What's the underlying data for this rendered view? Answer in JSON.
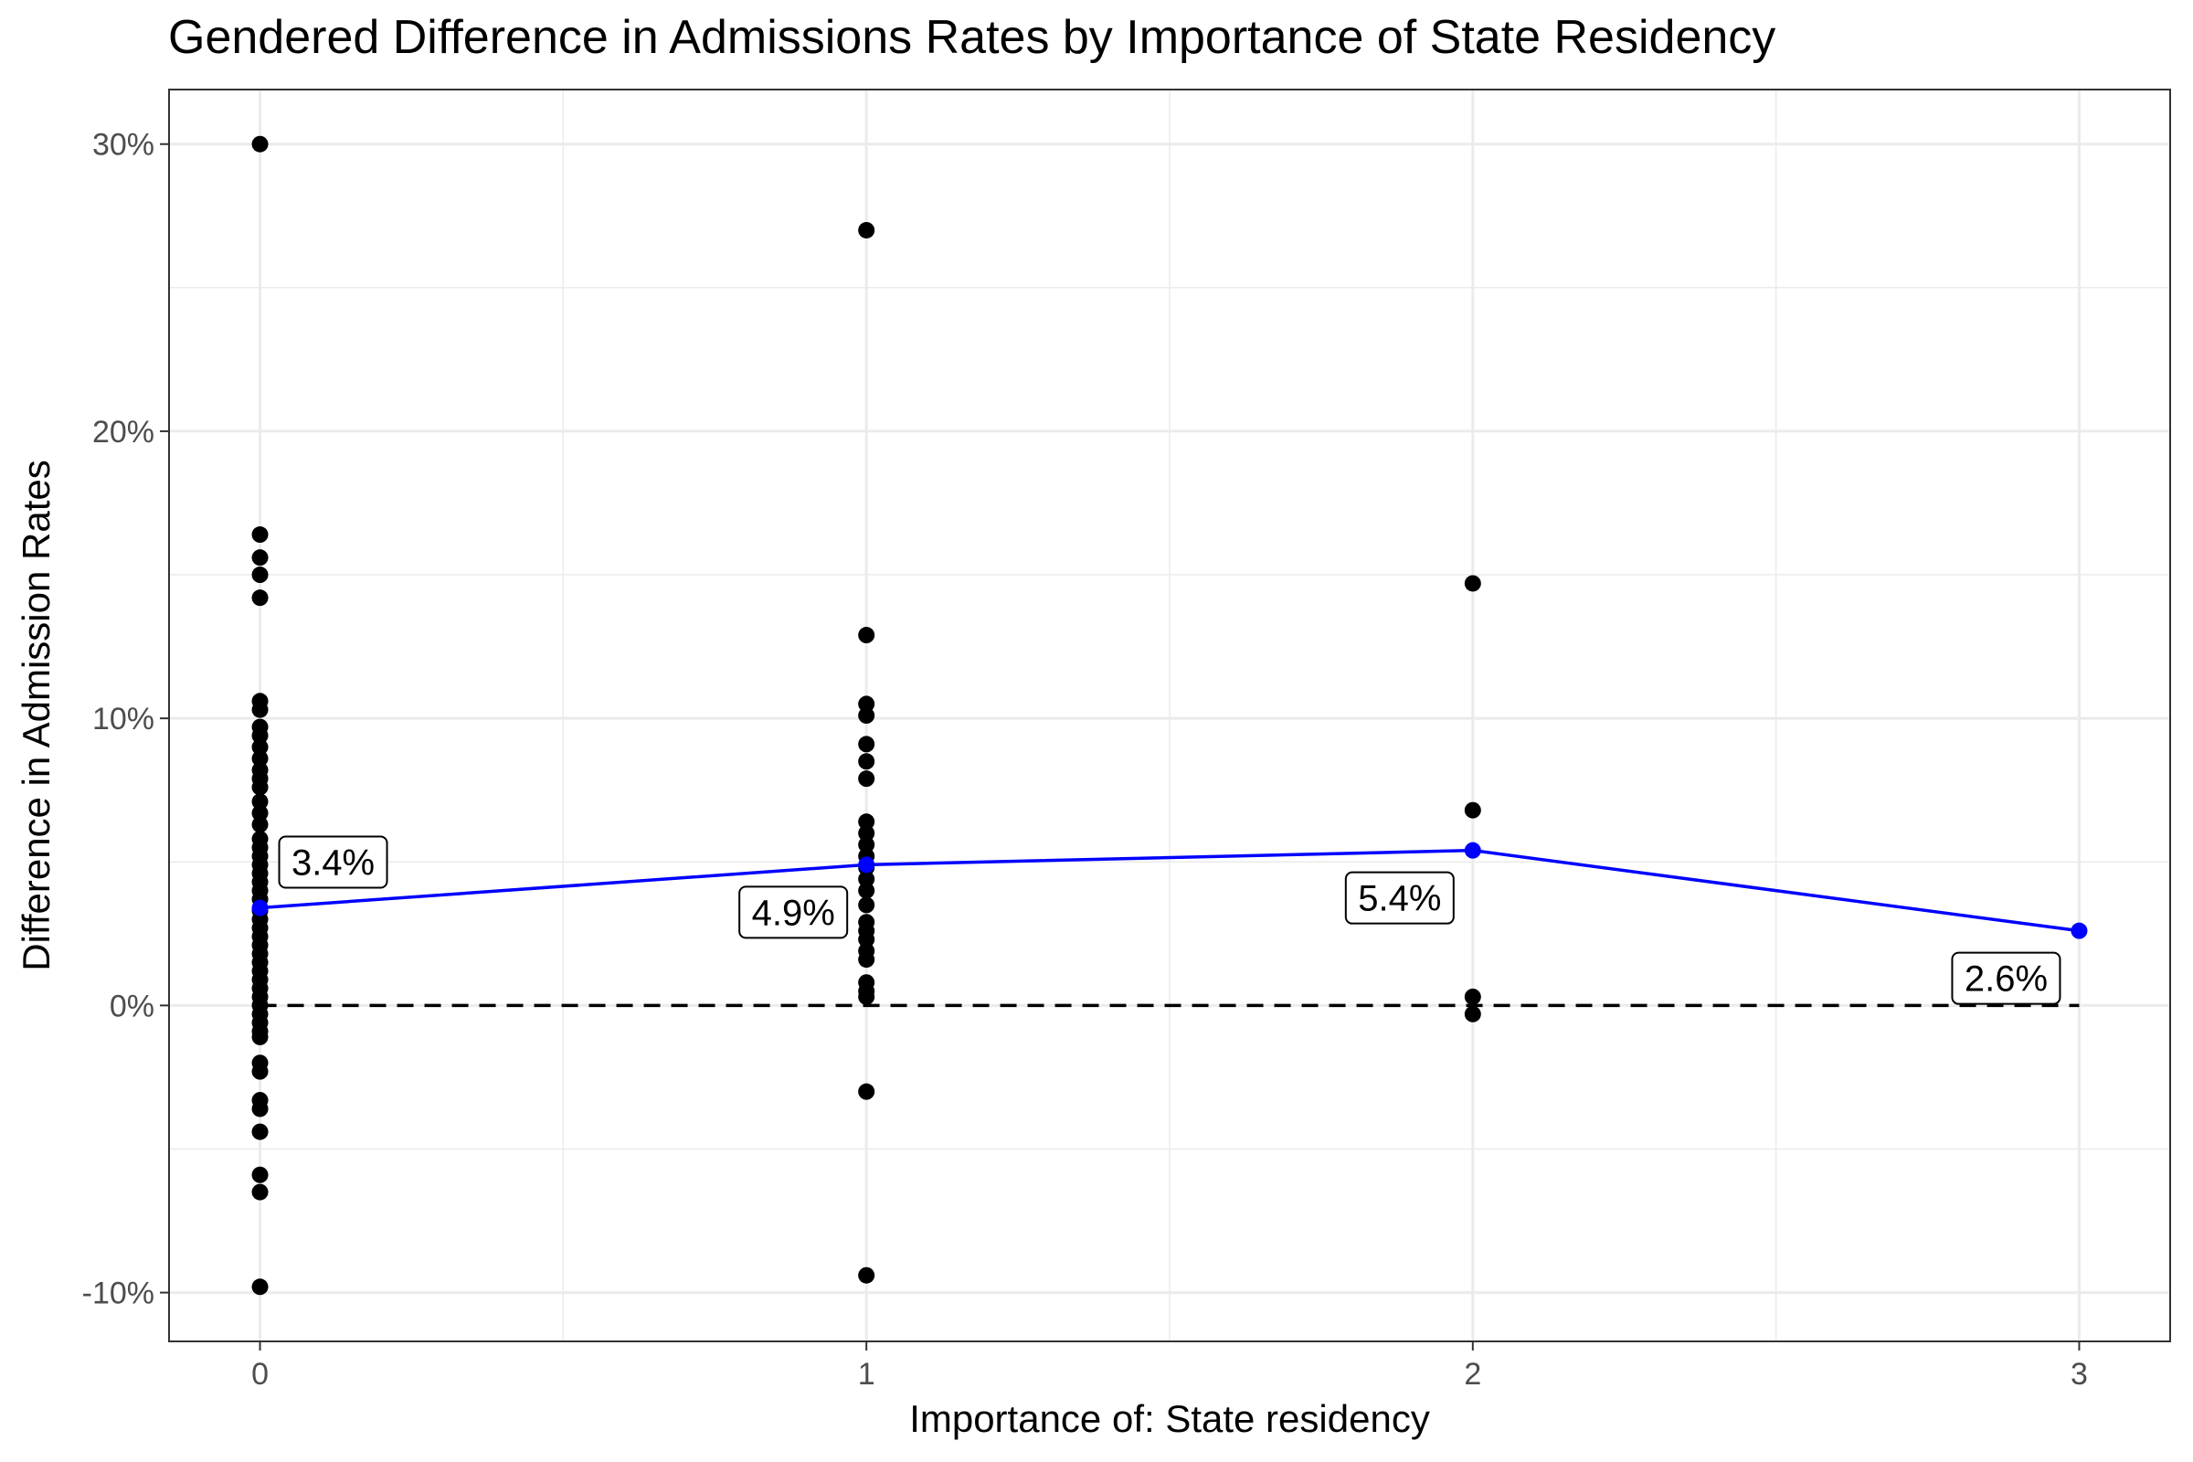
{
  "chart_data": {
    "type": "scatter",
    "title": "Gendered Difference in Admissions Rates by Importance of State Residency",
    "xlabel": "Importance of: State residency",
    "ylabel": "Difference in Admission Rates",
    "x_ticks": [
      "0",
      "1",
      "2",
      "3"
    ],
    "y_ticks": [
      "-10%",
      "0%",
      "10%",
      "20%",
      "30%"
    ],
    "xlim": [
      -0.15,
      3.15
    ],
    "ylim": [
      -11.7,
      31.9
    ],
    "grid": true,
    "reference_line": {
      "y": 0,
      "style": "dashed",
      "color": "#000000"
    },
    "colors": {
      "points": "#000000",
      "mean_line": "#0000ff",
      "grid": "#ebebeb",
      "panel_border": "#333333"
    },
    "series": [
      {
        "type": "scatter",
        "points": [
          [
            0,
            30.0
          ],
          [
            0,
            16.4
          ],
          [
            0,
            15.6
          ],
          [
            0,
            15.0
          ],
          [
            0,
            14.2
          ],
          [
            0,
            10.6
          ],
          [
            0,
            10.3
          ],
          [
            0,
            9.7
          ],
          [
            0,
            9.4
          ],
          [
            0,
            9.0
          ],
          [
            0,
            8.6
          ],
          [
            0,
            8.2
          ],
          [
            0,
            7.9
          ],
          [
            0,
            7.6
          ],
          [
            0,
            7.1
          ],
          [
            0,
            6.7
          ],
          [
            0,
            6.3
          ],
          [
            0,
            5.8
          ],
          [
            0,
            5.5
          ],
          [
            0,
            5.2
          ],
          [
            0,
            4.9
          ],
          [
            0,
            4.6
          ],
          [
            0,
            4.3
          ],
          [
            0,
            4.0
          ],
          [
            0,
            3.7
          ],
          [
            0,
            3.3
          ],
          [
            0,
            3.0
          ],
          [
            0,
            2.7
          ],
          [
            0,
            2.4
          ],
          [
            0,
            2.1
          ],
          [
            0,
            1.8
          ],
          [
            0,
            1.5
          ],
          [
            0,
            1.2
          ],
          [
            0,
            0.9
          ],
          [
            0,
            0.6
          ],
          [
            0,
            0.3
          ],
          [
            0,
            0.0
          ],
          [
            0,
            -0.3
          ],
          [
            0,
            -0.6
          ],
          [
            0,
            -0.9
          ],
          [
            0,
            -1.1
          ],
          [
            0,
            -2.0
          ],
          [
            0,
            -2.3
          ],
          [
            0,
            -3.3
          ],
          [
            0,
            -3.6
          ],
          [
            0,
            -4.4
          ],
          [
            0,
            -5.9
          ],
          [
            0,
            -6.5
          ],
          [
            0,
            -9.8
          ],
          [
            1,
            27.0
          ],
          [
            1,
            12.9
          ],
          [
            1,
            10.5
          ],
          [
            1,
            10.1
          ],
          [
            1,
            9.1
          ],
          [
            1,
            8.5
          ],
          [
            1,
            7.9
          ],
          [
            1,
            6.4
          ],
          [
            1,
            6.0
          ],
          [
            1,
            5.6
          ],
          [
            1,
            5.2
          ],
          [
            1,
            4.8
          ],
          [
            1,
            4.4
          ],
          [
            1,
            4.0
          ],
          [
            1,
            3.5
          ],
          [
            1,
            2.9
          ],
          [
            1,
            2.6
          ],
          [
            1,
            2.3
          ],
          [
            1,
            1.9
          ],
          [
            1,
            1.6
          ],
          [
            1,
            0.8
          ],
          [
            1,
            0.5
          ],
          [
            1,
            0.3
          ],
          [
            1,
            -3.0
          ],
          [
            1,
            -9.4
          ],
          [
            2,
            14.7
          ],
          [
            2,
            6.8
          ],
          [
            2,
            0.3
          ],
          [
            2,
            -0.3
          ]
        ]
      },
      {
        "type": "line",
        "name": "",
        "x": [
          0,
          1,
          2,
          3
        ],
        "values": [
          3.4,
          4.9,
          5.4,
          2.6
        ],
        "labels": [
          "3.4%",
          "4.9%",
          "5.4%",
          "2.6%"
        ]
      }
    ]
  }
}
